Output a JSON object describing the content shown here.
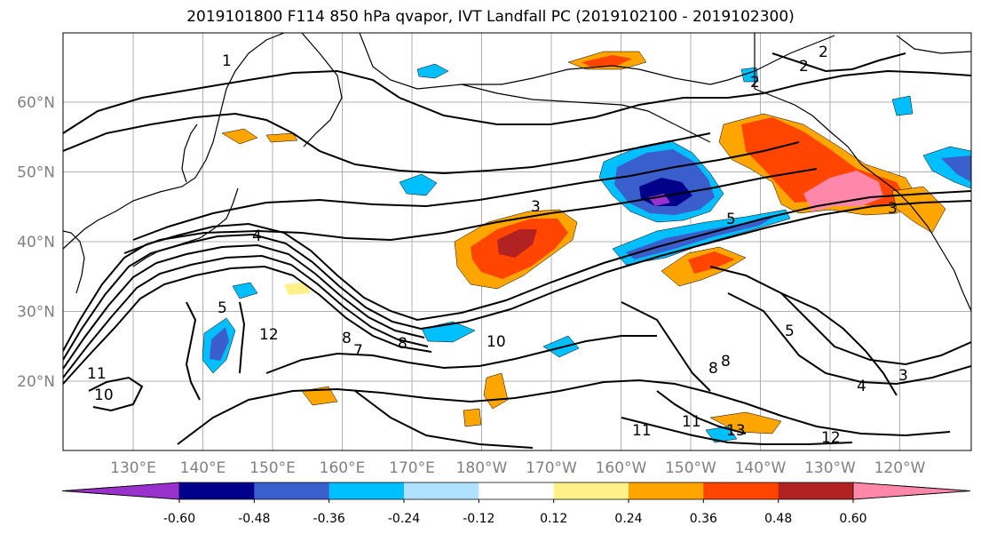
{
  "figure": {
    "title": "2019101800 F114 850 hPa qvapor, IVT Landfall PC (2019102100 - 2019102300)"
  },
  "map": {
    "lon_ticks": [
      "130°E",
      "140°E",
      "150°E",
      "160°E",
      "170°E",
      "180°W",
      "170°W",
      "160°W",
      "150°W",
      "140°W",
      "130°W",
      "120°W"
    ],
    "lat_ticks": [
      "60°N",
      "50°N",
      "40°N",
      "30°N",
      "20°N"
    ],
    "contour_labels": [
      "1",
      "2",
      "2",
      "3",
      "3",
      "4",
      "4",
      "5",
      "5",
      "5",
      "7",
      "8",
      "8",
      "8",
      "8",
      "10",
      "10",
      "11",
      "11",
      "11",
      "12",
      "12",
      "13",
      "2",
      "3"
    ]
  },
  "colorbar": {
    "colors": [
      "#9932cc",
      "#00008b",
      "#3a5fcd",
      "#00bfff",
      "#b0e2ff",
      "#ffffff",
      "#fff08a",
      "#ffa500",
      "#ff4500",
      "#b22222",
      "#ff88aa"
    ],
    "tick_labels": [
      "-0.60",
      "-0.48",
      "-0.36",
      "-0.24",
      "-0.12",
      "0.12",
      "0.24",
      "0.36",
      "0.48",
      "0.60"
    ]
  }
}
